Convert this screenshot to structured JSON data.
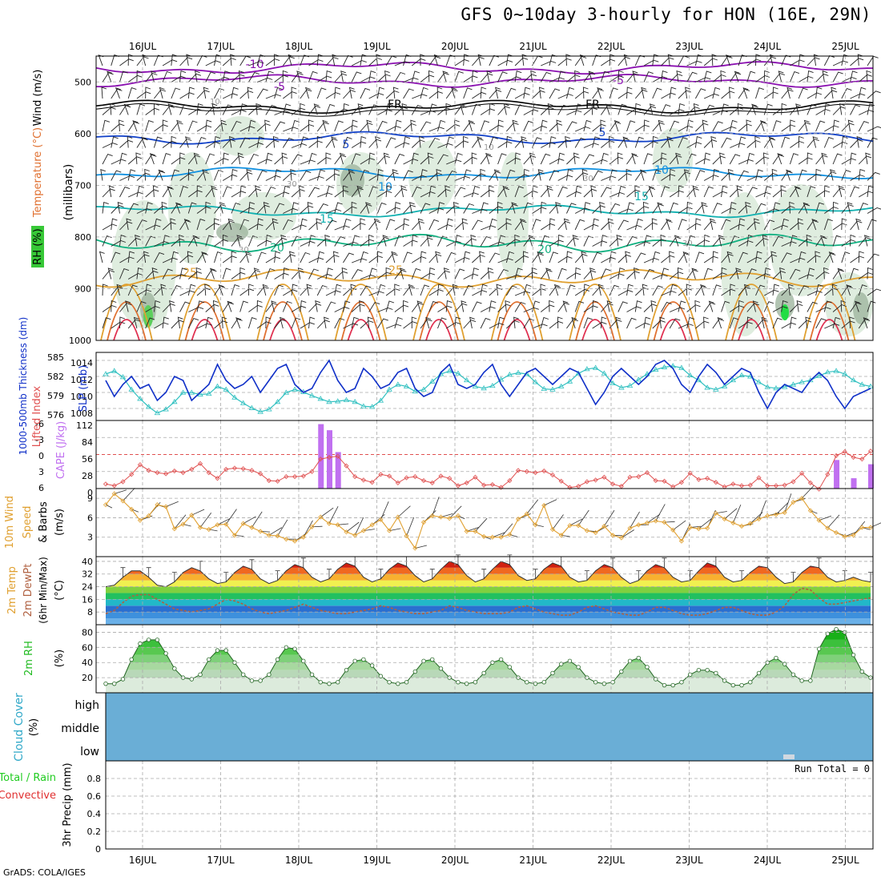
{
  "title": "GFS 0~10day 3-hourly for HON (16E, 29N)",
  "credit": "GrADS: COLA/IGES",
  "colors": {
    "sounding_bg": "#ffffff",
    "rh_fill": "#dcebdc",
    "rh_fill_dark": "#9fb59f",
    "slp": "#1030c8",
    "thickness": "#30c0c0",
    "lifted_index": "#e05050",
    "cape": "#c070f0",
    "wind_speed": "#e0a030",
    "cloud": "#6aaed6",
    "rh2m": "#22bb22"
  },
  "chart_data": [
    {
      "panel": "sounding",
      "type": "contour",
      "label_parts": [
        "RH (%)",
        "Temperature (°C)",
        "Wind (m/s)"
      ],
      "ylabel": "(millibars)",
      "ylim": [
        1000,
        450
      ],
      "yticks": [
        500,
        600,
        700,
        800,
        900,
        1000
      ],
      "x_dates": [
        "16JUL",
        "17JUL",
        "18JUL",
        "19JUL",
        "20JUL",
        "21JUL",
        "22JUL",
        "23JUL",
        "24JUL",
        "25JUL"
      ],
      "isotherms": [
        {
          "label": "-10",
          "color": "#8a10b0",
          "level": 473
        },
        {
          "label": "-5",
          "color": "#8a10b0",
          "level": 498
        },
        {
          "label": "FR",
          "color": "#000000",
          "level": 548
        },
        {
          "label": "5",
          "color": "#1040c8",
          "level": 608
        },
        {
          "label": "10",
          "color": "#1090e0",
          "level": 676
        },
        {
          "label": "15",
          "color": "#10b0b0",
          "level": 750
        },
        {
          "label": "20",
          "color": "#10b080",
          "level": 812
        },
        {
          "label": "25",
          "color": "#e0a030",
          "level": 880
        }
      ],
      "contour_labels": [
        "-10",
        "-5",
        "FR",
        "FR",
        "-5",
        "5",
        "5",
        "10",
        "10",
        "15",
        "15",
        "20",
        "20",
        "25",
        "25"
      ],
      "rh_labels": [
        "10",
        "30",
        "30",
        "10",
        "30",
        "30"
      ]
    },
    {
      "panel": "slp_thickness",
      "type": "line",
      "label_parts": [
        "1000-500mb Thickness (dm)",
        "SLP (mb)"
      ],
      "left_ticks": [
        "585",
        "582",
        "579",
        "576"
      ],
      "right_ticks": [
        "1014",
        "1012",
        "1010",
        "1008"
      ],
      "slp_ylim": [
        1006.5,
        1015
      ],
      "thk_ylim": [
        575,
        586
      ],
      "series": [
        {
          "name": "SLP (mb)",
          "values": [
            1011.5,
            1009.5,
            1011,
            1012,
            1010.5,
            1011,
            1009,
            1010,
            1012,
            1011.5,
            1009,
            1010,
            1011,
            1013.5,
            1011.5,
            1010.5,
            1011,
            1012,
            1010,
            1011.5,
            1013,
            1013.5,
            1011,
            1010,
            1010.5,
            1012.5,
            1014,
            1011.5,
            1010,
            1010.5,
            1013,
            1012,
            1010.5,
            1011,
            1012.5,
            1013,
            1010.5,
            1009.5,
            1010,
            1012.5,
            1013.5,
            1011,
            1010.5,
            1011,
            1012.5,
            1013.5,
            1011,
            1009.5,
            1011,
            1012.5,
            1013,
            1012,
            1011,
            1012,
            1013,
            1012.5,
            1010.5,
            1008.5,
            1010,
            1012,
            1013,
            1012,
            1011,
            1012,
            1013.5,
            1014,
            1013,
            1011,
            1010,
            1012,
            1013.5,
            1012.5,
            1011,
            1012,
            1013,
            1012.5,
            1010,
            1008,
            1010,
            1011,
            1010.5,
            1010,
            1011.5,
            1012.5,
            1011.5,
            1009.5,
            1008,
            1009.5,
            1010,
            1010.5
          ]
        },
        {
          "name": "1000-500mb Thickness (dm)",
          "values": [
            582.5,
            583,
            582,
            580,
            578.5,
            577.2,
            576.2,
            576.8,
            578,
            579.5,
            579.5,
            579.2,
            579.3,
            580.5,
            580,
            578.7,
            577.8,
            577,
            576.4,
            576.8,
            578,
            579.5,
            580,
            579.6,
            579,
            578.5,
            578,
            578.1,
            578.3,
            578,
            577.3,
            577.2,
            578.2,
            580,
            580.8,
            580.5,
            579.7,
            580,
            581.3,
            582.5,
            583,
            582.6,
            581.5,
            580.5,
            580.2,
            580.6,
            581.6,
            582.4,
            582.7,
            582.5,
            581.2,
            580.1,
            580,
            580.5,
            581.3,
            582.6,
            583.3,
            583.5,
            582.6,
            581,
            580.3,
            580.6,
            581.6,
            582.5,
            583.2,
            583.6,
            583.8,
            583.5,
            582.3,
            581.5,
            580.3,
            580,
            580.5,
            581.5,
            582.3,
            582.1,
            581.2,
            580.4,
            580.2,
            580.4,
            580.8,
            581.2,
            581.5,
            582.2,
            582.8,
            583,
            582.5,
            581.5,
            580.8,
            580.5
          ]
        }
      ]
    },
    {
      "panel": "stability",
      "type": "bar+line",
      "label_parts": [
        "Lifted Index",
        "CAPE (J/kg)"
      ],
      "li_ticks": [
        "-6",
        "-3",
        "0",
        "3",
        "6"
      ],
      "cape_ticks": [
        "112",
        "84",
        "56",
        "28",
        "0"
      ],
      "cape_ylim": [
        0,
        112
      ],
      "li_ylim": [
        6,
        -6
      ],
      "cape_bars": [
        {
          "index": 25,
          "value": 106
        },
        {
          "index": 26,
          "value": 96
        },
        {
          "index": 27,
          "value": 60
        },
        {
          "index": 85,
          "value": 47
        },
        {
          "index": 87,
          "value": 17
        },
        {
          "index": 89,
          "value": 40
        }
      ],
      "series": [
        {
          "name": "Lifted Index",
          "values": [
            5.2,
            5.5,
            4.8,
            3.5,
            1.8,
            2.8,
            3.2,
            3.4,
            2.9,
            3.2,
            2.6,
            1.6,
            3.2,
            4.2,
            2.6,
            2.4,
            2.5,
            2.8,
            3.4,
            4.6,
            4.7,
            3.9,
            3.9,
            3.8,
            3.0,
            0.8,
            0.5,
            0.3,
            2.0,
            3.9,
            4.5,
            4.9,
            3.5,
            3.8,
            5.0,
            4.1,
            3.9,
            4.6,
            5.0,
            3.8,
            4.2,
            5.5,
            5.0,
            4.0,
            5.4,
            5.3,
            5.8,
            4.6,
            2.8,
            3.0,
            3.2,
            2.9,
            3.6,
            4.7,
            5.8,
            5.6,
            4.8,
            4.5,
            4.0,
            5.2,
            5.6,
            4.0,
            3.9,
            3.2,
            4.6,
            4.7,
            5.7,
            4.9,
            3.3,
            4.4,
            4.2,
            4.9,
            5.7,
            5.2,
            5.5,
            5.4,
            4.1,
            5.5,
            5.5,
            5.4,
            4.8,
            3.3,
            5.0,
            6.1,
            3.5,
            0.2,
            -0.5,
            0.5,
            0.8,
            -0.6
          ]
        }
      ]
    },
    {
      "panel": "wind10m",
      "type": "line",
      "label_parts": [
        "10m Wind",
        "Speed",
        "& Barbs",
        "(m/s)"
      ],
      "yticks": [
        "9",
        "6",
        "3"
      ],
      "ylim": [
        0,
        10.5
      ],
      "series": [
        {
          "name": "10m Wind Speed",
          "values": [
            8.0,
            9.7,
            8.6,
            7.3,
            5.6,
            6.3,
            8.0,
            7.7,
            4.3,
            5.0,
            6.4,
            4.5,
            4.2,
            4.9,
            5.0,
            3.3,
            5.1,
            4.5,
            3.9,
            3.3,
            3.2,
            2.7,
            2.4,
            3.0,
            4.6,
            6.1,
            5.1,
            4.9,
            3.8,
            3.3,
            4.0,
            4.9,
            5.7,
            4.0,
            6.1,
            3.2,
            1.3,
            5.3,
            6.3,
            6.1,
            5.9,
            6.3,
            3.9,
            3.9,
            3.1,
            3.0,
            3.0,
            3.4,
            5.8,
            6.6,
            4.9,
            7.9,
            4.2,
            3.3,
            4.8,
            4.8,
            4.0,
            3.7,
            4.7,
            3.3,
            2.9,
            4.4,
            4.9,
            5.2,
            5.5,
            5.3,
            4.1,
            2.4,
            4.5,
            4.3,
            4.4,
            6.7,
            5.8,
            5.2,
            4.7,
            5.1,
            5.8,
            6.3,
            6.5,
            6.8,
            8.4,
            9.0,
            7.1,
            5.6,
            4.4,
            3.7,
            3.1,
            3.3,
            4.5,
            4.5
          ]
        }
      ]
    },
    {
      "panel": "temp2m",
      "type": "area",
      "label_parts": [
        "2m Temp",
        "2m DewPt",
        "(6hr Min/Max)",
        "(°C)"
      ],
      "yticks": [
        "40",
        "32",
        "24",
        "16",
        "8"
      ],
      "ylim": [
        0,
        43
      ],
      "series": [
        {
          "name": "2m Temp",
          "values": [
            24,
            25,
            30,
            34,
            34,
            30,
            25,
            24,
            27,
            33,
            36,
            34,
            29,
            26,
            27,
            33,
            37,
            35,
            29,
            26,
            28,
            34,
            38,
            36,
            30,
            27,
            29,
            35,
            39,
            37,
            30,
            27,
            29,
            35,
            39,
            37,
            31,
            27,
            29,
            35,
            40,
            38,
            31,
            27,
            29,
            35,
            40,
            38,
            31,
            28,
            29,
            35,
            39,
            37,
            30,
            27,
            28,
            34,
            38,
            36,
            30,
            26,
            28,
            34,
            38,
            36,
            30,
            27,
            28,
            34,
            39,
            37,
            30,
            27,
            28,
            33,
            37,
            36,
            30,
            26,
            27,
            33,
            37,
            36,
            30,
            27,
            28,
            30,
            28,
            27
          ]
        },
        {
          "name": "2m DewPt",
          "values": [
            7,
            9,
            14,
            18,
            19,
            19,
            16,
            13,
            10,
            9,
            8,
            9,
            10,
            13,
            16,
            15,
            13,
            10,
            8,
            7,
            8,
            9,
            11,
            13,
            11,
            9,
            8,
            7,
            7,
            8,
            9,
            10,
            12,
            11,
            9,
            8,
            7,
            7,
            8,
            9,
            12,
            11,
            9,
            8,
            7,
            7,
            7,
            8,
            11,
            12,
            10,
            8,
            7,
            6,
            6,
            8,
            11,
            12,
            10,
            8,
            7,
            6,
            6,
            8,
            11,
            11,
            9,
            7,
            6,
            6,
            7,
            9,
            11,
            11,
            9,
            7,
            6,
            6,
            8,
            12,
            19,
            23,
            22,
            17,
            13,
            13,
            14,
            15,
            16,
            17
          ]
        }
      ]
    },
    {
      "panel": "rh2m",
      "type": "area",
      "label_parts": [
        "2m RH",
        "(%)"
      ],
      "yticks": [
        "80",
        "60",
        "40",
        "20"
      ],
      "ylim": [
        0,
        90
      ],
      "series": [
        {
          "name": "2m RH",
          "values": [
            12,
            12,
            18,
            44,
            65,
            70,
            70,
            52,
            32,
            20,
            18,
            24,
            44,
            56,
            56,
            40,
            24,
            16,
            16,
            24,
            44,
            60,
            58,
            42,
            24,
            14,
            12,
            14,
            30,
            42,
            44,
            36,
            22,
            14,
            12,
            14,
            28,
            42,
            44,
            32,
            20,
            14,
            12,
            14,
            26,
            40,
            44,
            34,
            20,
            14,
            12,
            14,
            26,
            38,
            42,
            34,
            20,
            14,
            12,
            14,
            28,
            42,
            46,
            34,
            18,
            10,
            10,
            14,
            24,
            30,
            30,
            26,
            16,
            10,
            10,
            14,
            26,
            40,
            46,
            38,
            24,
            16,
            16,
            58,
            78,
            84,
            80,
            50,
            28,
            20
          ]
        }
      ]
    },
    {
      "panel": "cloud",
      "type": "heatmap",
      "label_parts": [
        "Cloud Cover",
        "(%)"
      ],
      "rows": [
        "high",
        "middle",
        "low"
      ]
    },
    {
      "panel": "precip",
      "type": "bar",
      "label_parts": [
        "Total / Rain",
        "Convective",
        "3hr Precip (mm)"
      ],
      "yticks": [
        "0.8",
        "0.6",
        "0.4",
        "0.2",
        "0"
      ],
      "ylim": [
        0,
        1
      ],
      "annotation": "Run Total = 0",
      "values": []
    }
  ]
}
